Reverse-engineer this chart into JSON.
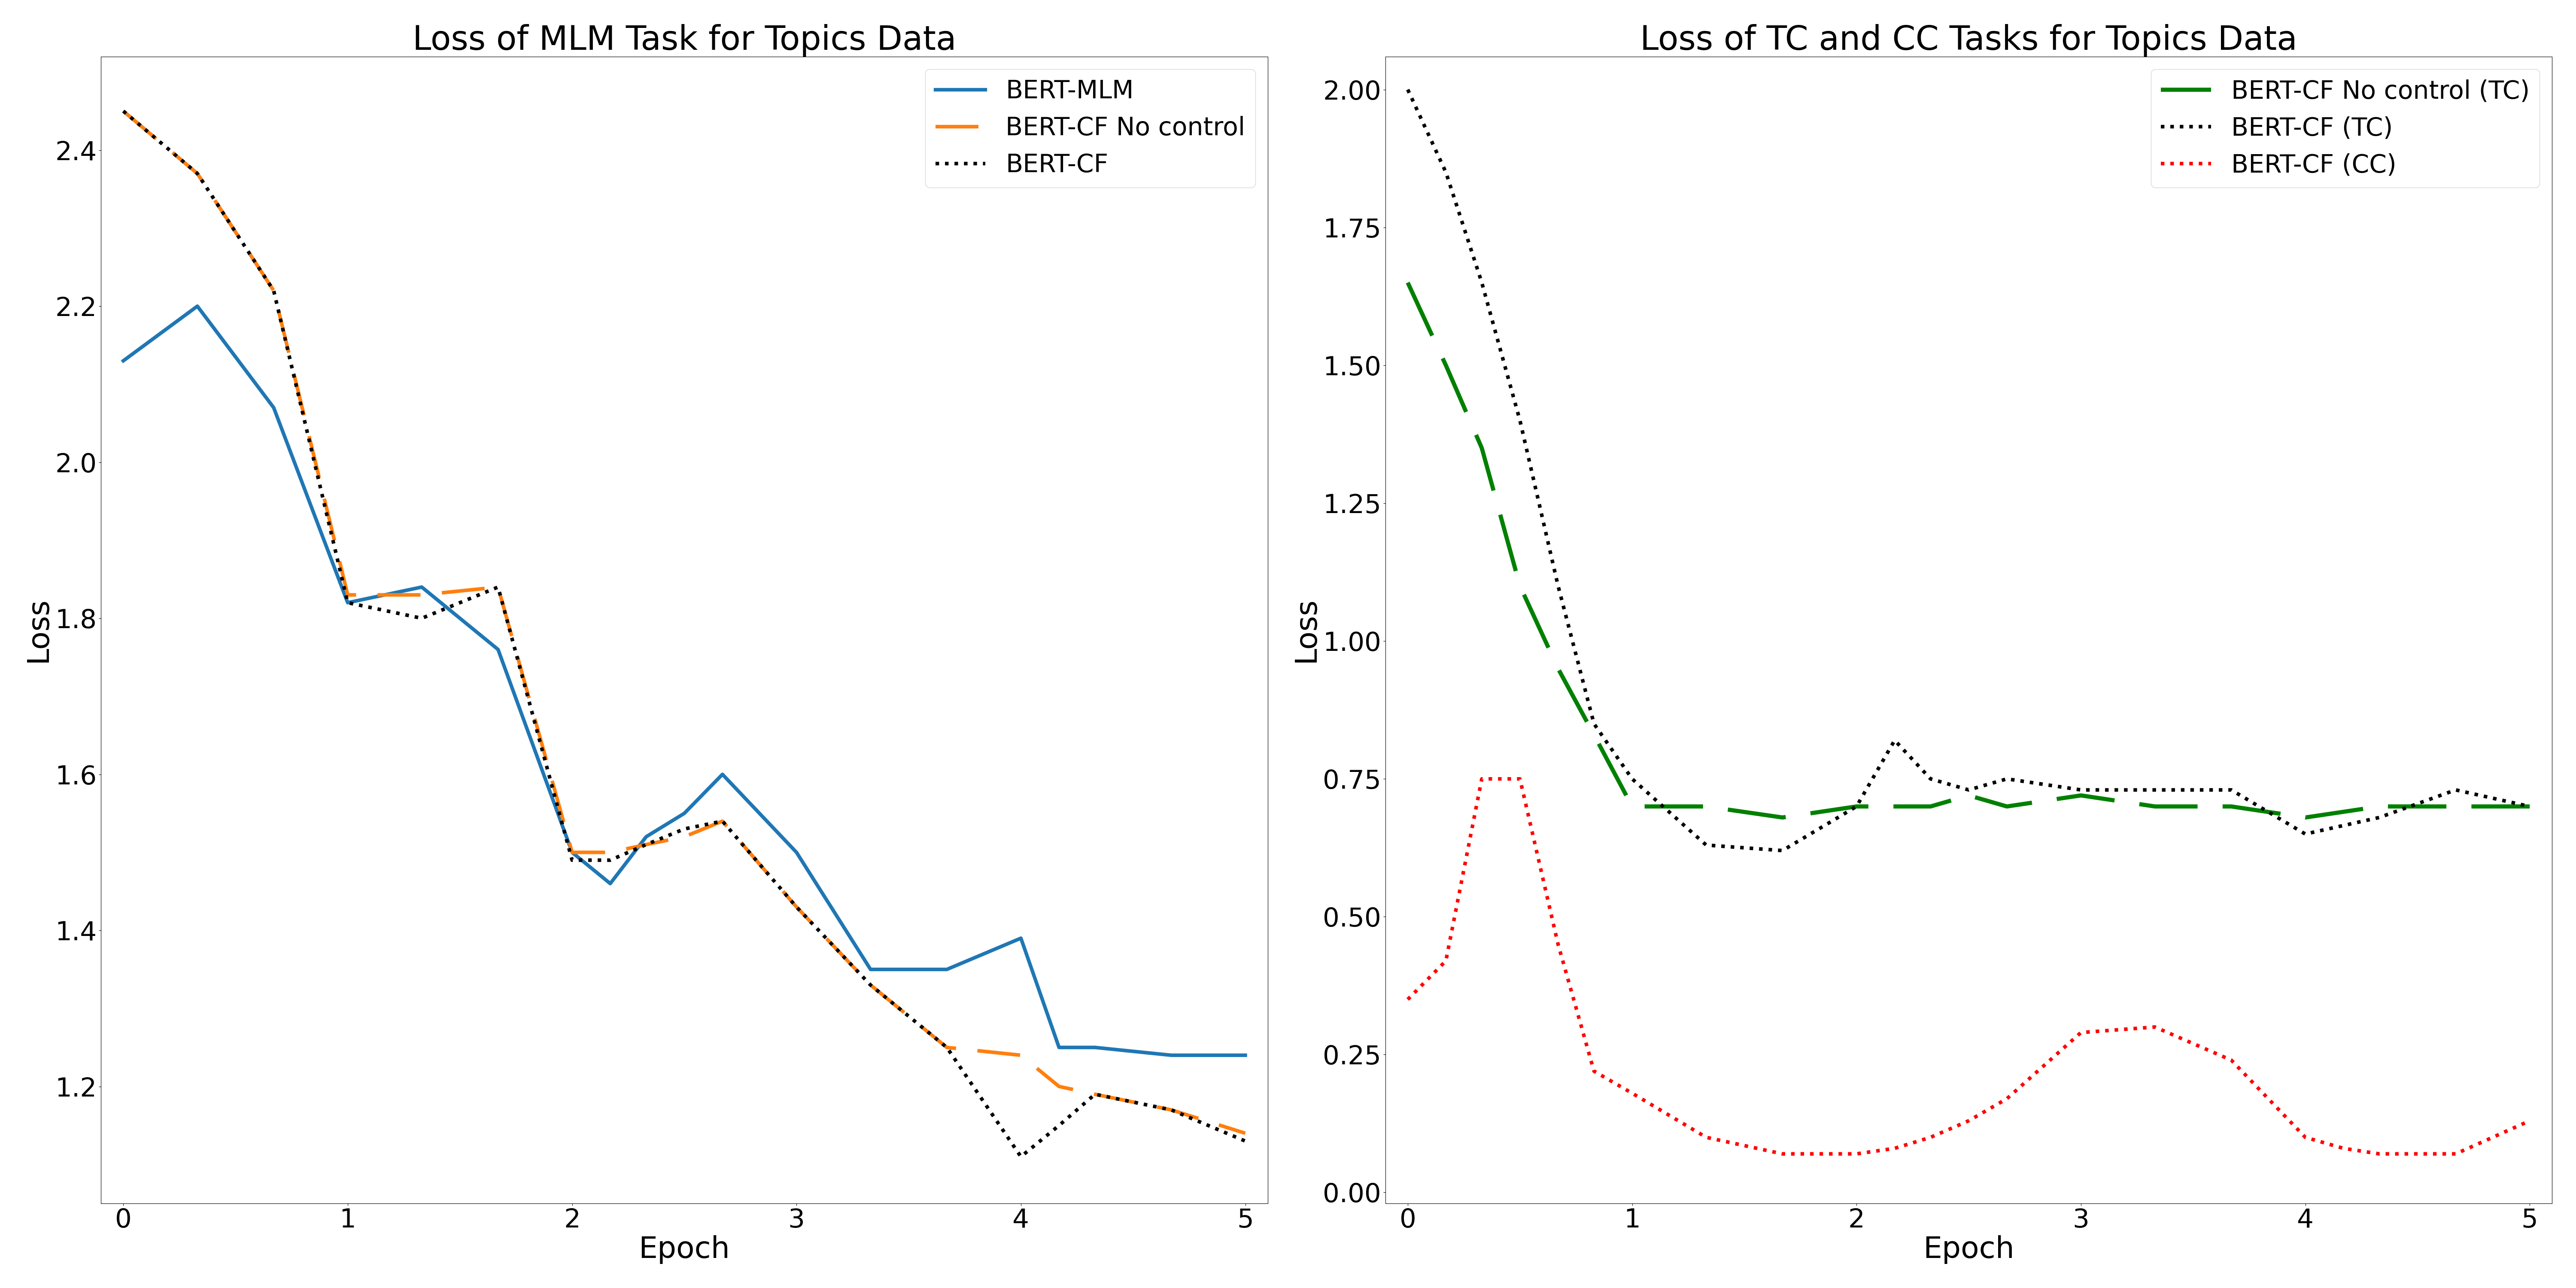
{
  "left_title": "Loss of MLM Task for Topics Data",
  "right_title": "Loss of TC and CC Tasks for Topics Data",
  "xlabel": "Epoch",
  "ylabel": "Loss",
  "left": {
    "bert_mlm": {
      "x": [
        0.0,
        0.33,
        0.67,
        1.0,
        1.33,
        1.67,
        2.0,
        2.17,
        2.33,
        2.5,
        2.67,
        3.0,
        3.33,
        3.67,
        4.0,
        4.17,
        4.33,
        4.67,
        5.0
      ],
      "y": [
        2.13,
        2.2,
        2.07,
        1.82,
        1.84,
        1.76,
        1.5,
        1.46,
        1.52,
        1.55,
        1.6,
        1.5,
        1.35,
        1.35,
        1.39,
        1.25,
        1.25,
        1.24,
        1.24
      ],
      "color": "#1f77b4",
      "style": "-",
      "lw": 6.0,
      "label": "BERT-MLM"
    },
    "bert_cf_no_control": {
      "x": [
        0.0,
        0.33,
        0.67,
        1.0,
        1.33,
        1.67,
        2.0,
        2.17,
        2.33,
        2.5,
        2.67,
        3.0,
        3.33,
        3.67,
        4.0,
        4.17,
        4.33,
        4.67,
        5.0
      ],
      "y": [
        2.45,
        2.37,
        2.22,
        1.83,
        1.83,
        1.84,
        1.5,
        1.5,
        1.51,
        1.52,
        1.54,
        1.43,
        1.33,
        1.25,
        1.24,
        1.2,
        1.19,
        1.17,
        1.14
      ],
      "color": "#ff7f0e",
      "style": "--",
      "lw": 6.0,
      "label": "BERT-CF No control"
    },
    "bert_cf": {
      "x": [
        0.0,
        0.33,
        0.67,
        1.0,
        1.33,
        1.67,
        2.0,
        2.17,
        2.33,
        2.5,
        2.67,
        3.0,
        3.33,
        3.67,
        4.0,
        4.17,
        4.33,
        4.67,
        5.0
      ],
      "y": [
        2.45,
        2.37,
        2.22,
        1.82,
        1.8,
        1.84,
        1.49,
        1.49,
        1.51,
        1.53,
        1.54,
        1.43,
        1.33,
        1.25,
        1.11,
        1.15,
        1.19,
        1.17,
        1.13
      ],
      "color": "#000000",
      "style": ":",
      "lw": 6.0,
      "label": "BERT-CF"
    }
  },
  "right": {
    "bert_cf_no_control_tc": {
      "x": [
        0.0,
        0.17,
        0.33,
        0.5,
        0.67,
        0.83,
        1.0,
        1.33,
        1.67,
        2.0,
        2.17,
        2.33,
        2.5,
        2.67,
        3.0,
        3.33,
        3.67,
        4.0,
        4.33,
        4.67,
        5.0
      ],
      "y": [
        1.65,
        1.5,
        1.35,
        1.1,
        0.95,
        0.83,
        0.7,
        0.7,
        0.68,
        0.7,
        0.7,
        0.7,
        0.72,
        0.7,
        0.72,
        0.7,
        0.7,
        0.68,
        0.7,
        0.7,
        0.7
      ],
      "color": "#008000",
      "style": "--",
      "lw": 7.0,
      "label": "BERT-CF No control (TC)"
    },
    "bert_cf_tc": {
      "x": [
        0.0,
        0.17,
        0.33,
        0.5,
        0.67,
        0.83,
        1.0,
        1.33,
        1.67,
        2.0,
        2.17,
        2.33,
        2.5,
        2.67,
        3.0,
        3.33,
        3.67,
        4.0,
        4.33,
        4.67,
        5.0
      ],
      "y": [
        2.0,
        1.85,
        1.65,
        1.4,
        1.1,
        0.85,
        0.75,
        0.63,
        0.62,
        0.7,
        0.82,
        0.75,
        0.73,
        0.75,
        0.73,
        0.73,
        0.73,
        0.65,
        0.68,
        0.73,
        0.7
      ],
      "color": "#000000",
      "style": ":",
      "lw": 6.0,
      "label": "BERT-CF (TC)"
    },
    "bert_cf_cc": {
      "x": [
        0.0,
        0.17,
        0.33,
        0.5,
        0.67,
        0.83,
        1.0,
        1.33,
        1.67,
        2.0,
        2.17,
        2.33,
        2.5,
        2.67,
        3.0,
        3.33,
        3.67,
        4.0,
        4.17,
        4.33,
        4.5,
        4.67,
        5.0
      ],
      "y": [
        0.35,
        0.42,
        0.75,
        0.75,
        0.45,
        0.22,
        0.18,
        0.1,
        0.07,
        0.07,
        0.08,
        0.1,
        0.13,
        0.17,
        0.29,
        0.3,
        0.24,
        0.1,
        0.08,
        0.07,
        0.07,
        0.07,
        0.13
      ],
      "color": "#ff0000",
      "style": ":",
      "lw": 6.0,
      "label": "BERT-CF (CC)"
    }
  },
  "left_ylim": [
    1.05,
    2.52
  ],
  "right_ylim": [
    -0.02,
    2.06
  ],
  "xlim_left": [
    -0.1,
    5.1
  ],
  "xlim_right": [
    -0.1,
    5.1
  ],
  "left_yticks": [
    1.2,
    1.4,
    1.6,
    1.8,
    2.0,
    2.2,
    2.4
  ],
  "right_yticks": [
    0.0,
    0.25,
    0.5,
    0.75,
    1.0,
    1.25,
    1.5,
    1.75,
    2.0
  ],
  "xticks": [
    0,
    1,
    2,
    3,
    4,
    5
  ],
  "title_fontsize": 56,
  "label_fontsize": 50,
  "tick_fontsize": 44,
  "legend_fontsize": 42
}
